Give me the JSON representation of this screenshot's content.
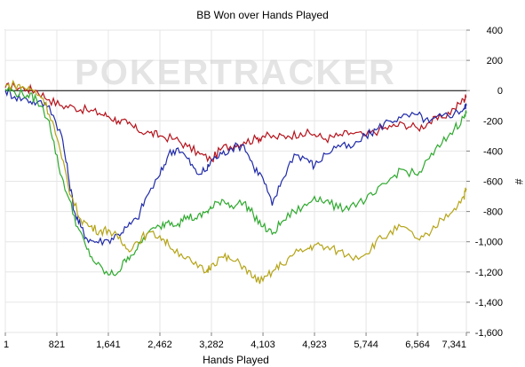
{
  "chart_data": {
    "type": "line",
    "title": "BB Won over Hands Played",
    "xlabel": "Hands Played",
    "ylabel": "#",
    "watermark": "POKERTRACKER",
    "xlim": [
      1,
      7341
    ],
    "ylim": [
      -1600,
      400
    ],
    "x_ticks": [
      1,
      821,
      1641,
      2462,
      3282,
      4103,
      4923,
      5744,
      6564,
      7341
    ],
    "x_tick_labels": [
      "1",
      "821",
      "1,641",
      "2,462",
      "3,282",
      "4,103",
      "4,923",
      "5,744",
      "6,564",
      "7,341"
    ],
    "y_ticks": [
      400,
      200,
      0,
      -200,
      -400,
      -600,
      -800,
      -1000,
      -1200,
      -1400,
      -1600
    ],
    "y_tick_labels": [
      "400",
      "200",
      "0",
      "-200",
      "-400",
      "-600",
      "-800",
      "-1,000",
      "-1,200",
      "-1,400",
      "-1,600"
    ],
    "y_axis_side": "right",
    "grid": true,
    "zero_line": true,
    "series": [
      {
        "color": "#b5121b",
        "x": [
          1,
          150,
          350,
          500,
          700,
          900,
          1100,
          1300,
          1500,
          1641,
          1800,
          1950,
          2100,
          2300,
          2462,
          2700,
          2900,
          3100,
          3282,
          3450,
          3650,
          3800,
          4000,
          4103,
          4300,
          4500,
          4700,
          4923,
          5100,
          5300,
          5500,
          5744,
          5950,
          6150,
          6350,
          6564,
          6750,
          6950,
          7150,
          7300,
          7341
        ],
        "y": [
          20,
          30,
          10,
          0,
          -60,
          -100,
          -110,
          -130,
          -150,
          -170,
          -200,
          -220,
          -260,
          -280,
          -300,
          -320,
          -370,
          -420,
          -460,
          -380,
          -360,
          -340,
          -320,
          -300,
          -310,
          -300,
          -280,
          -290,
          -320,
          -300,
          -280,
          -300,
          -260,
          -240,
          -220,
          -250,
          -210,
          -180,
          -120,
          -60,
          -40
        ]
      },
      {
        "color": "#1f2aa8",
        "x": [
          1,
          150,
          350,
          500,
          700,
          900,
          1000,
          1100,
          1200,
          1300,
          1450,
          1641,
          1800,
          1950,
          2100,
          2250,
          2462,
          2600,
          2750,
          2900,
          3050,
          3200,
          3282,
          3450,
          3600,
          3800,
          3950,
          4103,
          4250,
          4400,
          4600,
          4800,
          4923,
          5100,
          5300,
          5500,
          5744,
          5900,
          6100,
          6300,
          6564,
          6750,
          6950,
          7150,
          7300,
          7341
        ],
        "y": [
          0,
          -40,
          -60,
          -80,
          -100,
          -300,
          -550,
          -800,
          -900,
          -980,
          -1000,
          -990,
          -950,
          -900,
          -850,
          -700,
          -560,
          -420,
          -380,
          -450,
          -550,
          -530,
          -460,
          -420,
          -380,
          -360,
          -500,
          -580,
          -760,
          -600,
          -420,
          -450,
          -500,
          -420,
          -360,
          -380,
          -300,
          -260,
          -200,
          -180,
          -160,
          -210,
          -170,
          -150,
          -120,
          -100
        ]
      },
      {
        "color": "#2ea92e",
        "x": [
          1,
          150,
          350,
          500,
          700,
          850,
          1000,
          1150,
          1300,
          1450,
          1641,
          1800,
          1950,
          2100,
          2250,
          2462,
          2600,
          2750,
          2900,
          3050,
          3200,
          3282,
          3450,
          3600,
          3800,
          3950,
          4103,
          4250,
          4400,
          4600,
          4800,
          4923,
          5100,
          5300,
          5500,
          5744,
          5900,
          6100,
          6300,
          6564,
          6750,
          6950,
          7150,
          7300,
          7341
        ],
        "y": [
          10,
          -10,
          -30,
          -60,
          -200,
          -500,
          -700,
          -900,
          -1050,
          -1150,
          -1220,
          -1200,
          -1100,
          -1050,
          -950,
          -900,
          -860,
          -880,
          -830,
          -850,
          -800,
          -780,
          -720,
          -760,
          -740,
          -820,
          -900,
          -950,
          -870,
          -800,
          -760,
          -700,
          -730,
          -780,
          -760,
          -720,
          -680,
          -600,
          -520,
          -560,
          -450,
          -350,
          -250,
          -180,
          -150
        ]
      },
      {
        "color": "#b5a418",
        "x": [
          1,
          150,
          300,
          450,
          600,
          750,
          900,
          1050,
          1200,
          1350,
          1500,
          1641,
          1800,
          1950,
          2100,
          2250,
          2462,
          2600,
          2800,
          3000,
          3200,
          3282,
          3450,
          3600,
          3800,
          3950,
          4103,
          4250,
          4400,
          4600,
          4800,
          4923,
          5100,
          5300,
          5500,
          5744,
          5900,
          6100,
          6300,
          6564,
          6750,
          6950,
          7150,
          7300,
          7341
        ],
        "y": [
          30,
          40,
          20,
          0,
          -50,
          -200,
          -450,
          -700,
          -850,
          -900,
          -930,
          -920,
          -980,
          -1050,
          -1000,
          -950,
          -960,
          -1020,
          -1080,
          -1150,
          -1200,
          -1150,
          -1100,
          -1120,
          -1160,
          -1240,
          -1260,
          -1200,
          -1150,
          -1080,
          -1050,
          -1020,
          -1040,
          -1060,
          -1100,
          -1080,
          -1000,
          -950,
          -900,
          -980,
          -960,
          -850,
          -780,
          -700,
          -650
        ]
      }
    ]
  }
}
